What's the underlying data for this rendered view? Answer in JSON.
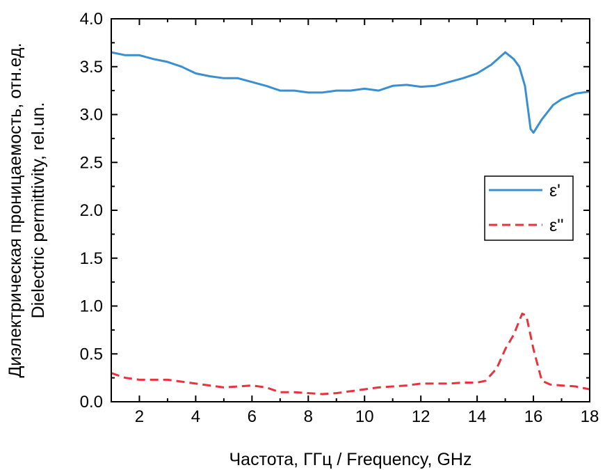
{
  "chart_data": {
    "type": "line",
    "xlabel": "Частота, ГГц / Frequency, GHz",
    "ylabel_lines": [
      "Диэлектрическая проницаемость, отн.ед.",
      "Dielectric permittivity, rel.un."
    ],
    "xlim": [
      1,
      18
    ],
    "ylim": [
      0,
      4.0
    ],
    "x_ticks": [
      "2",
      "4",
      "6",
      "8",
      "10",
      "12",
      "14",
      "16",
      "18"
    ],
    "y_ticks": [
      "0.0",
      "0.5",
      "1.0",
      "1.5",
      "2.0",
      "2.5",
      "3.0",
      "3.5",
      "4.0"
    ],
    "grid": false,
    "legend_position": "center-right",
    "series": [
      {
        "name": "ε'",
        "color": "#3a8fd0",
        "style": "solid",
        "x": [
          1,
          1.5,
          2,
          2.5,
          3,
          3.5,
          4,
          4.5,
          5,
          5.5,
          6,
          6.5,
          7,
          7.5,
          8,
          8.5,
          9,
          9.5,
          10,
          10.5,
          11,
          11.5,
          12,
          12.5,
          13,
          13.5,
          14,
          14.5,
          15,
          15.3,
          15.5,
          15.7,
          15.9,
          16,
          16.3,
          16.7,
          17,
          17.5,
          18
        ],
        "y": [
          3.65,
          3.62,
          3.62,
          3.58,
          3.55,
          3.5,
          3.43,
          3.4,
          3.38,
          3.38,
          3.34,
          3.3,
          3.25,
          3.25,
          3.23,
          3.23,
          3.25,
          3.25,
          3.27,
          3.25,
          3.3,
          3.31,
          3.29,
          3.3,
          3.34,
          3.38,
          3.43,
          3.52,
          3.65,
          3.58,
          3.5,
          3.3,
          2.85,
          2.81,
          2.95,
          3.1,
          3.16,
          3.22,
          3.24
        ]
      },
      {
        "name": "ε''",
        "color": "#e8323c",
        "style": "dashed",
        "x": [
          1,
          1.5,
          2,
          2.5,
          3,
          3.5,
          4,
          4.5,
          5,
          5.5,
          6,
          6.5,
          7,
          7.5,
          8,
          8.5,
          9,
          9.5,
          10,
          10.5,
          11,
          11.5,
          12,
          12.5,
          13,
          13.5,
          14,
          14.3,
          14.7,
          15,
          15.3,
          15.6,
          15.75,
          16,
          16.3,
          16.6,
          17,
          17.5,
          18
        ],
        "y": [
          0.3,
          0.25,
          0.23,
          0.23,
          0.23,
          0.21,
          0.19,
          0.17,
          0.15,
          0.16,
          0.17,
          0.15,
          0.1,
          0.1,
          0.09,
          0.08,
          0.09,
          0.11,
          0.13,
          0.15,
          0.16,
          0.17,
          0.19,
          0.19,
          0.19,
          0.2,
          0.2,
          0.22,
          0.35,
          0.55,
          0.7,
          0.92,
          0.9,
          0.55,
          0.22,
          0.18,
          0.17,
          0.16,
          0.13
        ]
      }
    ]
  }
}
